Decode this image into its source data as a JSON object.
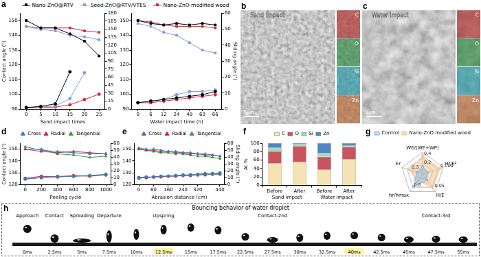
{
  "chart_data": [
    {
      "panel_label": "a",
      "type": "line",
      "x_label": "Sand impact times",
      "y_label": "Contact angle (°)",
      "x": [
        0,
        5,
        10,
        15,
        20,
        25
      ],
      "xlim": [
        -2,
        27
      ],
      "xticks": [
        0,
        5,
        10,
        15,
        20,
        25
      ],
      "ylim": [
        90,
        155
      ],
      "yticks": [
        90,
        100,
        110,
        120,
        130,
        140,
        150
      ],
      "y2lim": [
        0,
        180
      ],
      "y2ticks": [
        0,
        15,
        30,
        45,
        60,
        75,
        90,
        105,
        120,
        135,
        150,
        165,
        180
      ],
      "grid": false,
      "legend": "top",
      "series": [
        {
          "name": "Nano-ZnO@RTV",
          "color": "#000000",
          "marker": "square",
          "values": [
            150,
            145,
            145,
            141,
            136,
            126
          ]
        },
        {
          "name": "Seed-ZnO@RTV/VTES",
          "color": "#7f9fe0",
          "marker": "square",
          "values": [
            146,
            144,
            143,
            140,
            139,
            137
          ]
        },
        {
          "name": "Nano-ZnO modified wood",
          "color": "#d6283a",
          "marker": "square",
          "values": [
            146,
            145,
            145,
            145,
            143,
            142
          ]
        },
        {
          "name": "Nano-ZnO@RTV",
          "color": "#000000",
          "marker": "circle",
          "axis": "y2",
          "values": [
            3,
            5,
            10,
            70,
            null,
            null
          ]
        },
        {
          "name": "Seed-ZnO@RTV/VTES",
          "color": "#7f9fe0",
          "marker": "circle",
          "axis": "y2",
          "values": [
            3,
            4,
            6,
            20,
            68,
            null
          ]
        },
        {
          "name": "Nano-ZnO modified wood",
          "color": "#d6283a",
          "marker": "circle",
          "axis": "y2",
          "values": [
            2,
            3,
            4,
            8,
            18,
            28
          ]
        }
      ]
    },
    {
      "type": "line",
      "x_label": "Water impact time (h)",
      "y2_label": "Sliding angle (°)",
      "categories": [
        "0",
        "6",
        "12",
        "24",
        "48",
        "60",
        "66"
      ],
      "ylim": [
        90,
        155
      ],
      "yticks": [
        90,
        100,
        110,
        120,
        130,
        140,
        150
      ],
      "y2lim": [
        0,
        60
      ],
      "y2ticks": [
        0,
        10,
        20,
        30,
        40,
        50,
        60
      ],
      "grid": false,
      "series": [
        {
          "name": "Nano-ZnO@RTV",
          "color": "#000000",
          "marker": "square",
          "values": [
            150,
            148,
            147,
            148,
            147,
            148,
            147
          ]
        },
        {
          "name": "Seed-ZnO@RTV/VTES",
          "color": "#7f9fe0",
          "marker": "square",
          "values": [
            148,
            146,
            142,
            140,
            135,
            130,
            128
          ]
        },
        {
          "name": "Nano-ZnO modified wood",
          "color": "#d6283a",
          "marker": "square",
          "values": [
            150,
            149,
            147,
            146,
            146,
            146,
            145
          ]
        },
        {
          "name": "Nano-ZnO@RTV",
          "color": "#000000",
          "marker": "circle",
          "axis": "y2",
          "values": [
            4,
            5,
            6,
            7,
            8,
            9,
            11
          ]
        },
        {
          "name": "Seed-ZnO@RTV/VTES",
          "color": "#7f9fe0",
          "marker": "circle",
          "axis": "y2",
          "values": [
            4,
            5,
            6,
            9,
            11,
            11,
            12
          ]
        },
        {
          "name": "Nano-ZnO modified wood",
          "color": "#d6283a",
          "marker": "circle",
          "axis": "y2",
          "values": [
            4,
            4,
            5,
            6,
            7,
            8,
            9
          ]
        }
      ]
    },
    {
      "panel_label": "d",
      "type": "line",
      "x_label": "Peeling cycle",
      "y_label": "Contact angle (°)",
      "x": [
        0,
        200,
        400,
        600,
        800,
        1000
      ],
      "xlim": [
        -60,
        1060
      ],
      "xticks": [
        0,
        200,
        400,
        600,
        800,
        1000
      ],
      "ylim": [
        120,
        155
      ],
      "yticks": [
        120,
        130,
        140,
        150
      ],
      "y2lim": [
        0,
        60
      ],
      "y2ticks": [
        0,
        10,
        20,
        30,
        40,
        50,
        60
      ],
      "grid": false,
      "legend": "top",
      "series": [
        {
          "name": "Cross",
          "color": "#3a78c9",
          "marker": "triangle",
          "values": [
            152,
            149,
            148,
            147,
            146,
            146
          ]
        },
        {
          "name": "Radial",
          "color": "#d6283a",
          "marker": "triangle",
          "values": [
            150,
            148,
            147,
            148,
            147,
            146
          ]
        },
        {
          "name": "Tangential",
          "color": "#3a9a3a",
          "marker": "triangle",
          "values": [
            150,
            150,
            146,
            145,
            143,
            144
          ]
        },
        {
          "name": "Cross",
          "color": "#3a78c9",
          "marker": "circle",
          "axis": "y2",
          "values": [
            8,
            10,
            11,
            12,
            13,
            14
          ]
        },
        {
          "name": "Radial",
          "color": "#d6283a",
          "marker": "circle",
          "axis": "y2",
          "values": [
            9,
            12,
            11,
            13,
            12,
            14
          ]
        },
        {
          "name": "Tangential",
          "color": "#3a9a3a",
          "marker": "circle",
          "axis": "y2",
          "values": [
            8,
            10,
            12,
            12,
            13,
            15
          ]
        }
      ]
    },
    {
      "panel_label": "e",
      "type": "line",
      "x_label": "Abrasion distance (cm)",
      "y2_label": "Sliding angle (°)",
      "x": [
        0,
        40,
        80,
        120,
        160,
        200,
        240,
        280,
        320,
        360,
        400,
        440
      ],
      "xlim": [
        -25,
        465
      ],
      "xticks": [
        0,
        80,
        160,
        240,
        320,
        440
      ],
      "ylim": [
        120,
        155
      ],
      "yticks": [
        120,
        130,
        140,
        150
      ],
      "y2lim": [
        0,
        60
      ],
      "y2ticks": [
        0,
        10,
        20,
        30,
        40,
        50,
        60
      ],
      "grid": false,
      "legend": "top",
      "series": [
        {
          "name": "Cross",
          "color": "#3a78c9",
          "marker": "triangle",
          "values": [
            151,
            150,
            150,
            149,
            148,
            148,
            147,
            147,
            146,
            146,
            145,
            144
          ]
        },
        {
          "name": "Radial",
          "color": "#d6283a",
          "marker": "triangle",
          "values": [
            150,
            149,
            149,
            148,
            148,
            147,
            147,
            146,
            146,
            145,
            145,
            144
          ]
        },
        {
          "name": "Tangential",
          "color": "#3a9a3a",
          "marker": "triangle",
          "values": [
            150,
            149,
            148,
            147,
            147,
            146,
            146,
            145,
            144,
            144,
            143,
            142
          ]
        },
        {
          "name": "Cross",
          "color": "#3a78c9",
          "marker": "circle",
          "axis": "y2",
          "values": [
            10,
            11,
            11,
            12,
            12,
            13,
            13,
            14,
            14,
            15,
            15,
            16
          ]
        },
        {
          "name": "Radial",
          "color": "#d6283a",
          "marker": "circle",
          "axis": "y2",
          "values": [
            10,
            10,
            11,
            11,
            12,
            12,
            13,
            13,
            14,
            14,
            15,
            15
          ]
        },
        {
          "name": "Tangential",
          "color": "#3a9a3a",
          "marker": "circle",
          "axis": "y2",
          "values": [
            9,
            10,
            11,
            12,
            12,
            13,
            14,
            14,
            15,
            16,
            16,
            17
          ]
        }
      ]
    },
    {
      "panel_label": "f",
      "type": "bar",
      "stacked": true,
      "y_label": "At %",
      "categories": [
        "Before",
        "After",
        "Before",
        "After"
      ],
      "groups": [
        "Sand impact",
        "Water impact"
      ],
      "ylim": [
        0,
        100
      ],
      "yticks": [
        0,
        20,
        40,
        60,
        80,
        100
      ],
      "grid": false,
      "legend": "top",
      "series": [
        {
          "name": "C",
          "color": "#f6e3b4",
          "values": [
            52,
            56,
            37,
            62
          ]
        },
        {
          "name": "O",
          "color": "#c9545f",
          "values": [
            29,
            37,
            31,
            29
          ]
        },
        {
          "name": "Si",
          "color": "#a6d9b8",
          "values": [
            8,
            5,
            9,
            4
          ]
        },
        {
          "name": "Zn",
          "color": "#4f86c6",
          "values": [
            11,
            2,
            23,
            5
          ]
        }
      ]
    },
    {
      "panel_label": "g",
      "type": "radar",
      "legend": "top",
      "axes": [
        {
          "label": "WE/(WE+WP)",
          "lim": [
            0,
            0.5
          ],
          "ticks": [
            0.2,
            0.4
          ]
        },
        {
          "label": "H³/E²",
          "lim": [
            0,
            0.005
          ],
          "ticks": [
            0.004
          ]
        },
        {
          "label": "H/E",
          "lim": [
            0,
            0.06
          ],
          "ticks": [
            0.05
          ]
        },
        {
          "label": "hr/hmax",
          "lim": [
            0,
            1
          ],
          "ticks": [
            0.8
          ]
        },
        {
          "label": "Er",
          "lim": [
            0,
            0.5
          ],
          "ticks": [
            0.3
          ]
        }
      ],
      "series": [
        {
          "name": "Control",
          "color": "#8fb8e0",
          "values": [
            0.18,
            0.0012,
            0.02,
            0.72,
            0.14
          ]
        },
        {
          "name": "Nano-ZnO modified wood",
          "color": "#f2c28f",
          "values": [
            0.42,
            0.0042,
            0.048,
            0.38,
            0.32
          ]
        }
      ]
    }
  ],
  "micrographs": [
    {
      "panel_label": "b",
      "title": "Sand impact",
      "scale_bar": "5μm",
      "elements": [
        {
          "name": "C",
          "color": "#d83030"
        },
        {
          "name": "O",
          "color": "#2fa84a"
        },
        {
          "name": "Si",
          "color": "#22b8c8"
        },
        {
          "name": "Zn",
          "color": "#e07b39"
        }
      ]
    },
    {
      "panel_label": "c",
      "title": "Water impact",
      "scale_bar": "5μm",
      "elements": [
        {
          "name": "C",
          "color": "#d83030"
        },
        {
          "name": "O",
          "color": "#2fa84a"
        },
        {
          "name": "Si",
          "color": "#22b8c8"
        },
        {
          "name": "Zn",
          "color": "#e07b39"
        }
      ]
    }
  ],
  "droplet_panel": {
    "panel_label": "h",
    "title": "Bouncing behavior of water droplet",
    "frames": [
      {
        "time": "0ms",
        "stage": "Approach"
      },
      {
        "time": "2.5ms",
        "stage": "Contact"
      },
      {
        "time": "5ms",
        "stage": "Spreading"
      },
      {
        "time": "7.5ms",
        "stage": "Departure"
      },
      {
        "time": "10ms"
      },
      {
        "time": "12.5ms",
        "stage": "Upspring",
        "color": "#fff3a0"
      },
      {
        "time": "15ms"
      },
      {
        "time": "17.5ms"
      },
      {
        "time": "22.5ms"
      },
      {
        "time": "27.5ms",
        "stage": "Contact-2nd"
      },
      {
        "time": "30ms"
      },
      {
        "time": "32.5ms"
      },
      {
        "time": "40ms",
        "color": "#fff3a0"
      },
      {
        "time": "42.5ms"
      },
      {
        "time": "45ms"
      },
      {
        "time": "47.5ms",
        "stage": "Contact-3rd"
      },
      {
        "time": "55ms"
      }
    ]
  }
}
